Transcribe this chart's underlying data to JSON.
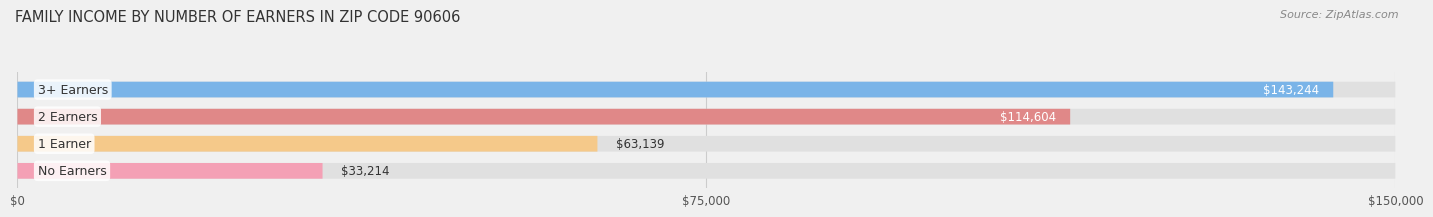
{
  "title": "FAMILY INCOME BY NUMBER OF EARNERS IN ZIP CODE 90606",
  "source": "Source: ZipAtlas.com",
  "categories": [
    "No Earners",
    "1 Earner",
    "2 Earners",
    "3+ Earners"
  ],
  "values": [
    33214,
    63139,
    114604,
    143244
  ],
  "labels": [
    "$33,214",
    "$63,139",
    "$114,604",
    "$143,244"
  ],
  "bar_colors": [
    "#f4a0b5",
    "#f5c98a",
    "#e08888",
    "#7ab4e8"
  ],
  "background_color": "#f0f0f0",
  "track_color": "#e0e0e0",
  "xlim": [
    0,
    150000
  ],
  "xticks": [
    0,
    75000,
    150000
  ],
  "xticklabels": [
    "$0",
    "$75,000",
    "$150,000"
  ],
  "title_fontsize": 10.5,
  "source_fontsize": 8,
  "label_fontsize": 8.5,
  "category_fontsize": 9,
  "bar_height": 0.58,
  "fig_width": 14.06,
  "fig_height": 2.33
}
